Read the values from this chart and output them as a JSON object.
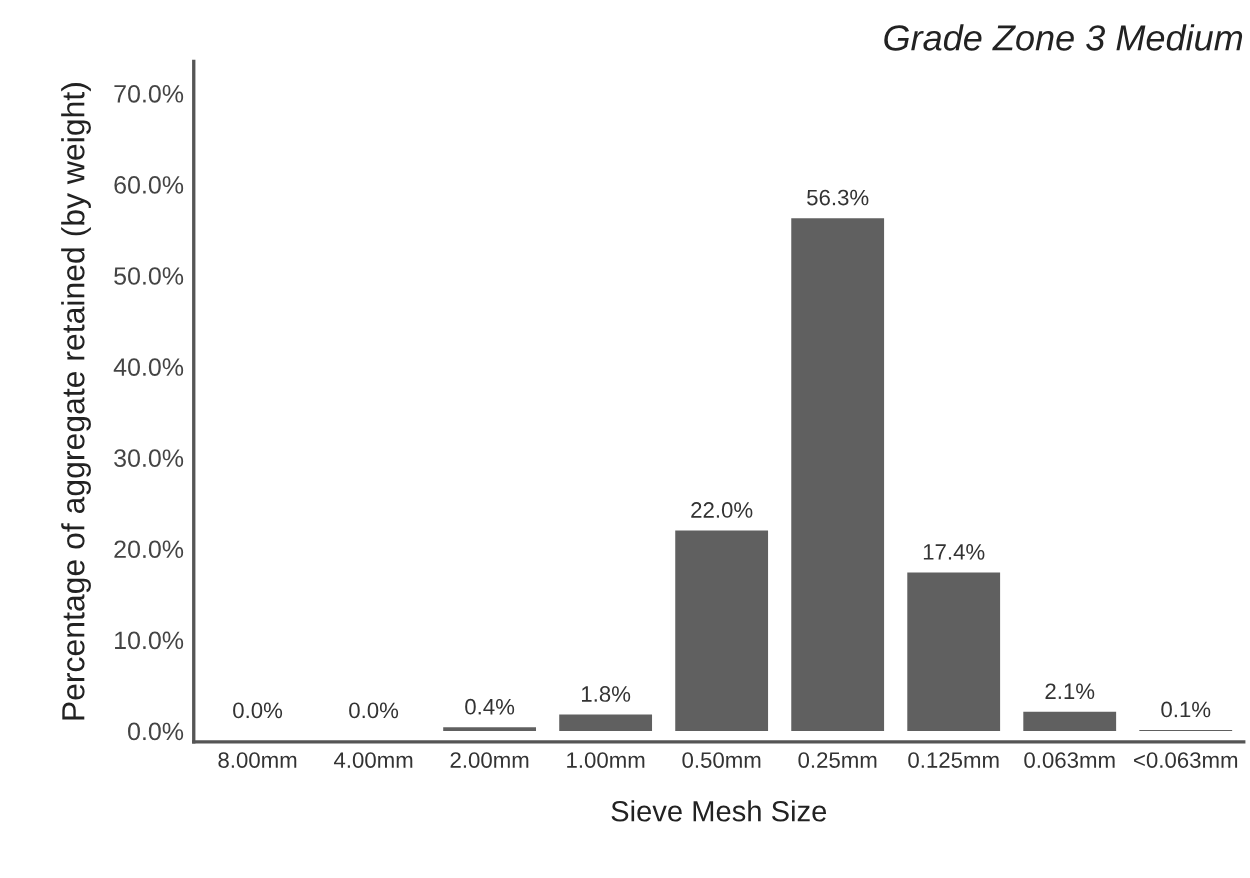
{
  "chart_data": {
    "type": "bar",
    "title": "Grade Zone 3 Medium",
    "xlabel": "Sieve Mesh Size",
    "ylabel": "Percentage of aggregate retained (by weight)",
    "categories": [
      "8.00mm",
      "4.00mm",
      "2.00mm",
      "1.00mm",
      "0.50mm",
      "0.25mm",
      "0.125mm",
      "0.063mm",
      "<0.063mm"
    ],
    "values": [
      0.0,
      0.0,
      0.4,
      1.8,
      22.0,
      56.3,
      17.4,
      2.1,
      0.1
    ],
    "value_labels": [
      "0.0%",
      "0.0%",
      "0.4%",
      "1.8%",
      "22.0%",
      "56.3%",
      "17.4%",
      "2.1%",
      "0.1%"
    ],
    "color": "#606060",
    "ylim": [
      -1.2,
      73.5
    ],
    "yticks": [
      {
        "value": 0,
        "label": "0.0%"
      },
      {
        "value": 10,
        "label": "10.0%"
      },
      {
        "value": 20,
        "label": "20.0%"
      },
      {
        "value": 30,
        "label": "30.0%"
      },
      {
        "value": 40,
        "label": "40.0%"
      },
      {
        "value": 50,
        "label": "50.0%"
      },
      {
        "value": 60,
        "label": "60.0%"
      },
      {
        "value": 70,
        "label": "70.0%"
      }
    ],
    "grid": false,
    "legend": false
  }
}
